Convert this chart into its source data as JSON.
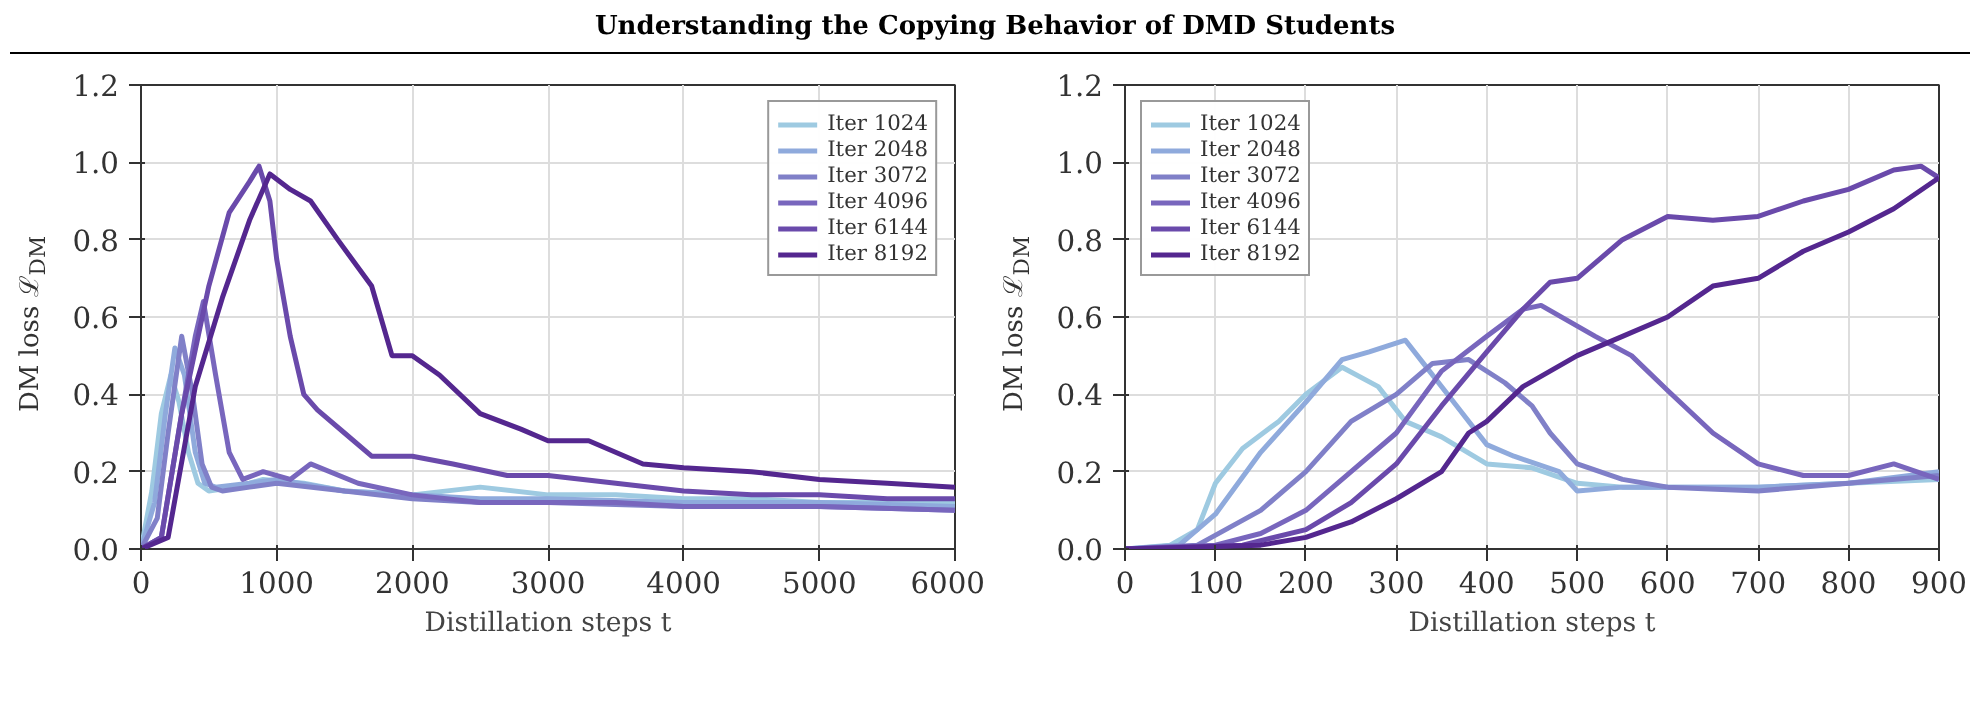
{
  "chart_data": [
    {
      "type": "line",
      "annotations": [
        "Understanding the Copying Behavior of DMD Students"
      ],
      "xlabel": "Distillation steps t",
      "ylabel": "DM loss ℒ$_{DM}$",
      "xlim": [
        0,
        6000
      ],
      "ylim": [
        0,
        1.2
      ],
      "xticks": [
        0,
        1000,
        2000,
        3000,
        4000,
        5000,
        6000
      ],
      "yticks": [
        {
          "value": 0,
          "label": "0.0"
        },
        {
          "value": 0.2,
          "label": "0.2"
        },
        {
          "value": 0.4,
          "label": "0.4"
        },
        {
          "value": 0.6,
          "label": "0.6"
        },
        {
          "value": 0.8,
          "label": "0.8"
        },
        {
          "value": 1.0,
          "label": "1.0"
        },
        {
          "value": 1.2,
          "label": "1.2"
        }
      ],
      "grid": true,
      "legend": "top right",
      "series": [
        {
          "name": "Iter 1024",
          "color": "#9ecae1",
          "x": [
            0,
            80,
            150,
            220,
            280,
            350,
            420,
            500,
            700,
            900,
            1200,
            1500,
            2000,
            2500,
            3000,
            3500,
            4000,
            4500,
            5000,
            5500,
            6000
          ],
          "values": [
            0,
            0.15,
            0.35,
            0.45,
            0.38,
            0.25,
            0.17,
            0.15,
            0.16,
            0.18,
            0.17,
            0.15,
            0.14,
            0.16,
            0.14,
            0.14,
            0.13,
            0.13,
            0.12,
            0.12,
            0.12
          ]
        },
        {
          "name": "Iter 2048",
          "color": "#8faadc",
          "x": [
            0,
            100,
            180,
            250,
            320,
            400,
            470,
            550,
            800,
            1000,
            1500,
            2000,
            2500,
            3000,
            4000,
            5000,
            6000
          ],
          "values": [
            0,
            0.12,
            0.35,
            0.52,
            0.45,
            0.25,
            0.17,
            0.16,
            0.17,
            0.18,
            0.15,
            0.14,
            0.13,
            0.13,
            0.12,
            0.12,
            0.11
          ]
        },
        {
          "name": "Iter 3072",
          "color": "#8080c8",
          "x": [
            0,
            120,
            200,
            300,
            380,
            450,
            520,
            600,
            800,
            1000,
            1500,
            2000,
            2500,
            3000,
            4000,
            5000,
            6000
          ],
          "values": [
            0,
            0.08,
            0.3,
            0.55,
            0.4,
            0.22,
            0.16,
            0.15,
            0.16,
            0.17,
            0.15,
            0.13,
            0.12,
            0.12,
            0.11,
            0.11,
            0.1
          ]
        },
        {
          "name": "Iter 4096",
          "color": "#7866bd",
          "x": [
            0,
            150,
            300,
            400,
            460,
            550,
            650,
            750,
            900,
            1100,
            1250,
            1600,
            2000,
            2500,
            3000,
            3500,
            4000,
            5000,
            6000
          ],
          "values": [
            0,
            0.03,
            0.35,
            0.55,
            0.64,
            0.45,
            0.25,
            0.18,
            0.2,
            0.18,
            0.22,
            0.17,
            0.14,
            0.12,
            0.12,
            0.12,
            0.11,
            0.11,
            0.1
          ]
        },
        {
          "name": "Iter 6144",
          "color": "#6a4aab",
          "x": [
            0,
            150,
            300,
            500,
            650,
            800,
            870,
            950,
            1000,
            1100,
            1200,
            1300,
            1500,
            1700,
            2000,
            2300,
            2700,
            3000,
            3500,
            4000,
            4500,
            5000,
            5500,
            6000
          ],
          "values": [
            0,
            0.03,
            0.35,
            0.68,
            0.87,
            0.95,
            0.99,
            0.9,
            0.75,
            0.55,
            0.4,
            0.36,
            0.3,
            0.24,
            0.24,
            0.22,
            0.19,
            0.19,
            0.17,
            0.15,
            0.14,
            0.14,
            0.13,
            0.13
          ]
        },
        {
          "name": "Iter 8192",
          "color": "#54278f",
          "x": [
            0,
            200,
            400,
            600,
            800,
            950,
            1100,
            1250,
            1450,
            1700,
            1850,
            2000,
            2200,
            2500,
            2800,
            3000,
            3300,
            3700,
            4000,
            4500,
            5000,
            5500,
            6000
          ],
          "values": [
            0,
            0.03,
            0.42,
            0.65,
            0.85,
            0.97,
            0.93,
            0.9,
            0.8,
            0.68,
            0.5,
            0.5,
            0.45,
            0.35,
            0.31,
            0.28,
            0.28,
            0.22,
            0.21,
            0.2,
            0.18,
            0.17,
            0.16
          ]
        }
      ]
    },
    {
      "type": "line",
      "xlabel": "Distillation steps t",
      "ylabel": "DM loss ℒ$_{DM}$",
      "xlim": [
        0,
        900
      ],
      "ylim": [
        0,
        1.2
      ],
      "xticks": [
        0,
        100,
        200,
        300,
        400,
        500,
        600,
        700,
        800,
        900
      ],
      "yticks": [
        {
          "value": 0,
          "label": "0.0"
        },
        {
          "value": 0.2,
          "label": "0.2"
        },
        {
          "value": 0.4,
          "label": "0.4"
        },
        {
          "value": 0.6,
          "label": "0.6"
        },
        {
          "value": 0.8,
          "label": "0.8"
        },
        {
          "value": 1.0,
          "label": "1.0"
        },
        {
          "value": 1.2,
          "label": "1.2"
        }
      ],
      "grid": true,
      "legend": "top left",
      "series": [
        {
          "name": "Iter 1024",
          "color": "#9ecae1",
          "x": [
            0,
            50,
            80,
            100,
            130,
            170,
            200,
            240,
            280,
            310,
            350,
            400,
            450,
            500,
            550,
            600,
            700,
            800,
            900
          ],
          "values": [
            0,
            0.01,
            0.05,
            0.17,
            0.26,
            0.33,
            0.4,
            0.47,
            0.42,
            0.33,
            0.29,
            0.22,
            0.21,
            0.17,
            0.16,
            0.16,
            0.16,
            0.17,
            0.18
          ]
        },
        {
          "name": "Iter 2048",
          "color": "#8faadc",
          "x": [
            0,
            60,
            100,
            150,
            200,
            240,
            270,
            310,
            330,
            370,
            400,
            430,
            480,
            500,
            550,
            600,
            700,
            800,
            900
          ],
          "values": [
            0,
            0.01,
            0.09,
            0.25,
            0.38,
            0.49,
            0.51,
            0.54,
            0.48,
            0.36,
            0.27,
            0.24,
            0.2,
            0.15,
            0.16,
            0.16,
            0.16,
            0.17,
            0.2
          ]
        },
        {
          "name": "Iter 3072",
          "color": "#8080c8",
          "x": [
            0,
            80,
            150,
            200,
            250,
            300,
            340,
            380,
            420,
            450,
            470,
            500,
            550,
            600,
            700,
            800,
            900
          ],
          "values": [
            0,
            0.01,
            0.1,
            0.2,
            0.33,
            0.4,
            0.48,
            0.49,
            0.43,
            0.37,
            0.3,
            0.22,
            0.18,
            0.16,
            0.15,
            0.17,
            0.19
          ]
        },
        {
          "name": "Iter 4096",
          "color": "#7866bd",
          "x": [
            0,
            100,
            150,
            200,
            250,
            300,
            350,
            400,
            440,
            460,
            520,
            560,
            600,
            650,
            700,
            750,
            800,
            850,
            900
          ],
          "values": [
            0,
            0.01,
            0.04,
            0.1,
            0.2,
            0.3,
            0.46,
            0.55,
            0.62,
            0.63,
            0.55,
            0.5,
            0.41,
            0.3,
            0.22,
            0.19,
            0.19,
            0.22,
            0.18
          ]
        },
        {
          "name": "Iter 6144",
          "color": "#6a4aab",
          "x": [
            0,
            130,
            200,
            250,
            300,
            350,
            400,
            440,
            470,
            500,
            550,
            600,
            650,
            700,
            750,
            800,
            850,
            880,
            900
          ],
          "values": [
            0,
            0.01,
            0.05,
            0.12,
            0.22,
            0.37,
            0.51,
            0.62,
            0.69,
            0.7,
            0.8,
            0.86,
            0.85,
            0.86,
            0.9,
            0.93,
            0.98,
            0.99,
            0.96
          ]
        },
        {
          "name": "Iter 8192",
          "color": "#54278f",
          "x": [
            0,
            150,
            200,
            250,
            300,
            350,
            380,
            400,
            440,
            470,
            500,
            550,
            600,
            650,
            700,
            750,
            800,
            850,
            900
          ],
          "values": [
            0,
            0.01,
            0.03,
            0.07,
            0.13,
            0.2,
            0.3,
            0.33,
            0.42,
            0.46,
            0.5,
            0.55,
            0.6,
            0.68,
            0.7,
            0.77,
            0.82,
            0.88,
            0.96
          ]
        }
      ]
    }
  ]
}
